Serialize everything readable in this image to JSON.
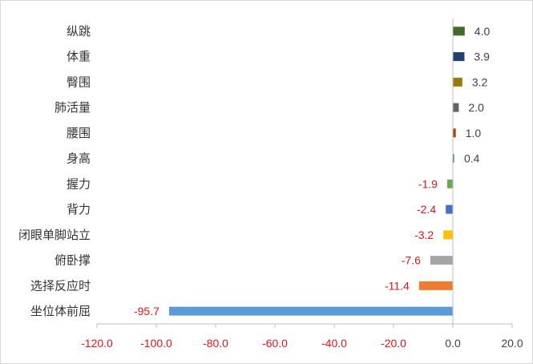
{
  "chart_data": {
    "type": "bar",
    "orientation": "horizontal",
    "title": "",
    "xlabel": "",
    "ylabel": "",
    "xlim": [
      -120,
      20
    ],
    "xticks": [
      "-120.0",
      "-100.0",
      "-80.0",
      "-60.0",
      "-40.0",
      "-20.0",
      "0.0",
      "20.0"
    ],
    "xtick_values": [
      -120,
      -100,
      -80,
      -60,
      -40,
      -20,
      0,
      20
    ],
    "grid": false,
    "legend": "none",
    "positive_label_color": "#404040",
    "negative_label_color": "#e0141e",
    "categories": [
      "纵跳",
      "体重",
      "臀围",
      "肺活量",
      "腰围",
      "身高",
      "握力",
      "背力",
      "闭眼单脚站立",
      "俯卧撑",
      "选择反应时",
      "坐位体前屈"
    ],
    "values": [
      4.0,
      3.9,
      3.2,
      2.0,
      1.0,
      0.4,
      -1.9,
      -2.4,
      -3.2,
      -7.6,
      -11.4,
      -95.7
    ],
    "value_labels": [
      "4.0",
      "3.9",
      "3.2",
      "2.0",
      "1.0",
      "0.4",
      "-1.9",
      "-2.4",
      "-3.2",
      "-7.6",
      "-11.4",
      "-95.7"
    ],
    "colors": [
      "#3e6b2a",
      "#22416e",
      "#9a7a08",
      "#636363",
      "#a8460f",
      "#2f5f99",
      "#6aa84f",
      "#4472c4",
      "#ffc000",
      "#a5a5a5",
      "#ed7d31",
      "#5b9bd5"
    ]
  }
}
